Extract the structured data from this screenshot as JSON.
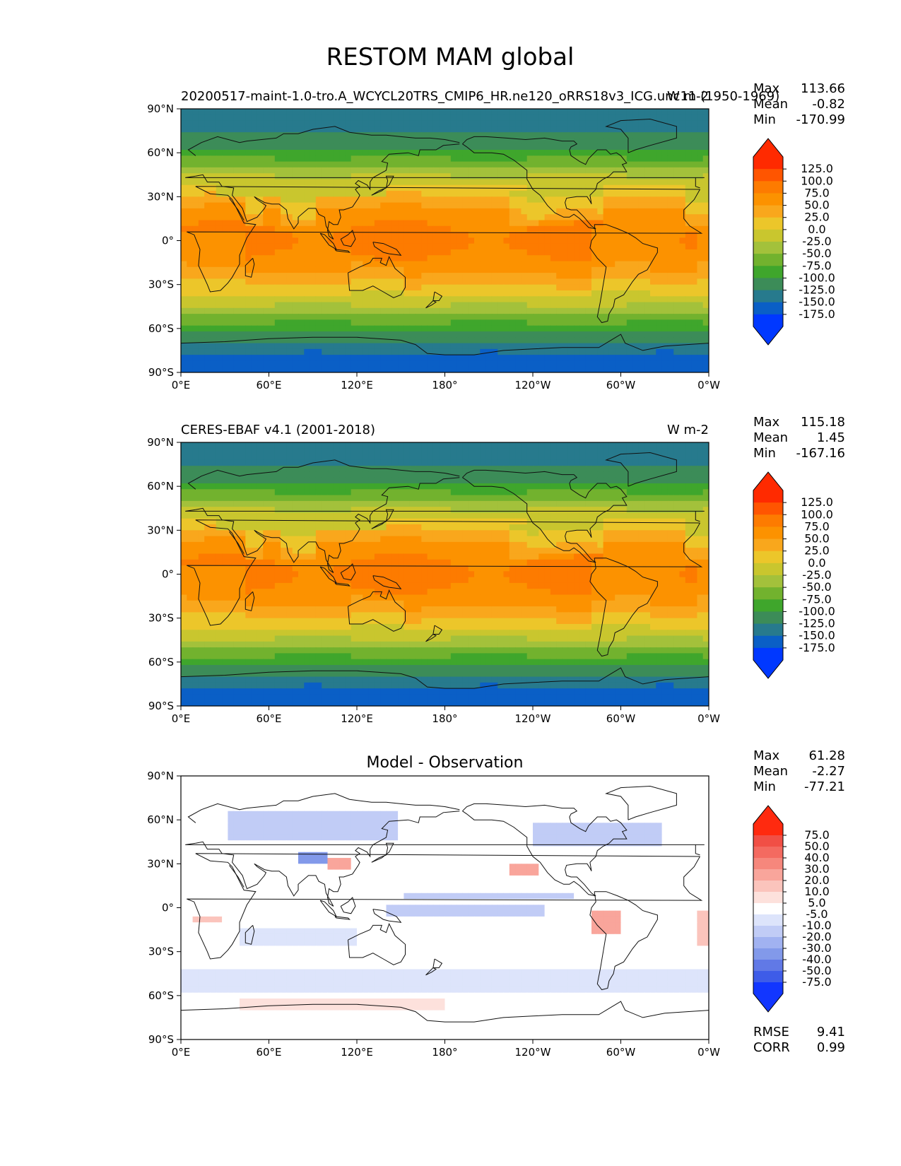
{
  "figure": {
    "title": "RESTOM MAM global"
  },
  "panels": [
    {
      "id": "model",
      "left_title": "20200517-maint-1.0-tro.A_WCYCL20TRS_CMIP6_HR.ne120_oRRS18v3_ICG.unc11 (1950-1969)",
      "right_title": "W m-2",
      "center_title": "",
      "stats": {
        "max_label": "Max",
        "max": "113.66",
        "mean_label": "Mean",
        "mean": "-0.82",
        "min_label": "Min",
        "min": "-170.99"
      },
      "colorbar": "absolute",
      "map_style": "absolute",
      "model_variant": 1
    },
    {
      "id": "obs",
      "left_title": "CERES-EBAF v4.1 (2001-2018)",
      "right_title": "W m-2",
      "center_title": "",
      "stats": {
        "max_label": "Max",
        "max": "115.18",
        "mean_label": "Mean",
        "mean": "1.45",
        "min_label": "Min",
        "min": "-167.16"
      },
      "colorbar": "absolute",
      "map_style": "absolute",
      "model_variant": 0
    },
    {
      "id": "diff",
      "left_title": "",
      "right_title": "",
      "center_title": "Model - Observation",
      "stats": {
        "max_label": "Max",
        "max": "61.28",
        "mean_label": "Mean",
        "mean": "-2.27",
        "min_label": "Min",
        "min": "-77.21"
      },
      "colorbar": "difference",
      "map_style": "difference",
      "extra_stats": {
        "rmse_label": "RMSE",
        "rmse": "9.41",
        "corr_label": "CORR",
        "corr": "0.99"
      }
    }
  ],
  "axes": {
    "lat_ticks": [
      "90°N",
      "60°N",
      "30°N",
      "0°",
      "30°S",
      "60°S",
      "90°S"
    ],
    "lon_ticks": [
      "0°E",
      "60°E",
      "120°E",
      "180°",
      "120°W",
      "60°W",
      "0°W"
    ]
  },
  "colorbars": {
    "absolute": {
      "labels": [
        "125.0",
        "100.0",
        "75.0",
        "50.0",
        "25.0",
        "0.0",
        "-25.0",
        "-50.0",
        "-75.0",
        "-100.0",
        "-125.0",
        "-150.0",
        "-175.0"
      ],
      "colors": [
        "#ff2a00",
        "#ff5500",
        "#fd7b00",
        "#fc9200",
        "#f9a71c",
        "#ecc62a",
        "#c9c62e",
        "#a3c13b",
        "#72b22e",
        "#3fa62c",
        "#3c8c58",
        "#277a8d",
        "#0a5fc6",
        "#0038ff"
      ],
      "top_color": "#ff2a00",
      "bottom_color": "#0038ff"
    },
    "difference": {
      "labels": [
        "75.0",
        "50.0",
        "40.0",
        "30.0",
        "20.0",
        "10.0",
        "5.0",
        "-5.0",
        "-10.0",
        "-20.0",
        "-30.0",
        "-40.0",
        "-50.0",
        "-75.0"
      ],
      "colors": [
        "#ff2a0f",
        "#f14f45",
        "#f46a60",
        "#f6877c",
        "#f9a59b",
        "#fbc4bc",
        "#fde1dc",
        "#ffffff",
        "#dde4fb",
        "#c1ccf6",
        "#a1b2f1",
        "#8299ea",
        "#6179e6",
        "#3e5ce8",
        "#1236ff"
      ],
      "top_color": "#ff2a0f",
      "bottom_color": "#1236ff"
    }
  },
  "chart_data": [
    {
      "type": "heatmap",
      "title": "RESTOM MAM global",
      "subtitle": "20200517-maint-1.0-tro.A_WCYCL20TRS_CMIP6_HR.ne120_oRRS18v3_ICG.unc11 (1950-1969)",
      "units": "W m-2",
      "xlim": [
        0,
        360
      ],
      "ylim": [
        -90,
        90
      ],
      "stats": {
        "max": 113.66,
        "mean": -0.82,
        "min": -170.99
      },
      "levels": [
        -175,
        -150,
        -125,
        -100,
        -75,
        -50,
        -25,
        0,
        25,
        50,
        75,
        100,
        125
      ],
      "approx_zonal_mean": {
        "lat": [
          85,
          60,
          30,
          0,
          -30,
          -60,
          -80
        ],
        "value": [
          -100,
          -75,
          25,
          75,
          25,
          -125,
          -175
        ]
      }
    },
    {
      "type": "heatmap",
      "subtitle": "CERES-EBAF v4.1 (2001-2018)",
      "units": "W m-2",
      "xlim": [
        0,
        360
      ],
      "ylim": [
        -90,
        90
      ],
      "stats": {
        "max": 115.18,
        "mean": 1.45,
        "min": -167.16
      },
      "levels": [
        -175,
        -150,
        -125,
        -100,
        -75,
        -50,
        -25,
        0,
        25,
        50,
        75,
        100,
        125
      ],
      "approx_zonal_mean": {
        "lat": [
          85,
          60,
          30,
          0,
          -30,
          -60,
          -80
        ],
        "value": [
          -100,
          -75,
          25,
          75,
          25,
          -125,
          -175
        ]
      }
    },
    {
      "type": "heatmap",
      "title": "Model - Observation",
      "xlim": [
        0,
        360
      ],
      "ylim": [
        -90,
        90
      ],
      "stats": {
        "max": 61.28,
        "mean": -2.27,
        "min": -77.21,
        "rmse": 9.41,
        "corr": 0.99
      },
      "levels": [
        -75,
        -50,
        -40,
        -30,
        -20,
        -10,
        -5,
        5,
        10,
        20,
        30,
        40,
        50,
        75
      ]
    }
  ]
}
